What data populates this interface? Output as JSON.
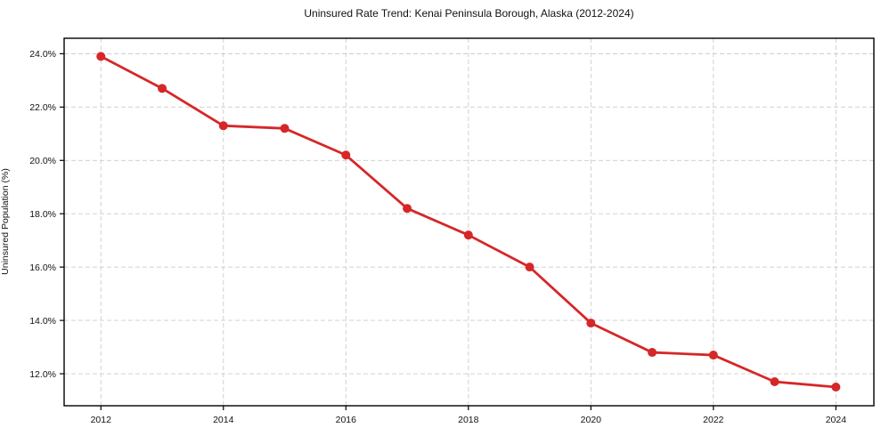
{
  "chart_data": {
    "type": "line",
    "title": "Uninsured Rate Trend: Kenai Peninsula Borough, Alaska (2012-2024)",
    "xlabel": "",
    "ylabel": "Uninsured Population (%)",
    "x": [
      2012,
      2013,
      2014,
      2015,
      2016,
      2017,
      2018,
      2019,
      2020,
      2021,
      2022,
      2023,
      2024
    ],
    "values": [
      23.9,
      22.7,
      21.3,
      21.2,
      20.2,
      18.2,
      17.2,
      16.0,
      13.9,
      12.8,
      12.7,
      11.7,
      11.5
    ],
    "x_ticks": [
      2012,
      2014,
      2016,
      2018,
      2020,
      2022,
      2024
    ],
    "x_tick_labels": [
      "2012",
      "2014",
      "2016",
      "2018",
      "2020",
      "2022",
      "2024"
    ],
    "y_ticks": [
      12,
      14,
      16,
      18,
      20,
      22,
      24
    ],
    "y_tick_labels": [
      "12.0%",
      "14.0%",
      "16.0%",
      "18.0%",
      "20.0%",
      "22.0%",
      "24.0%"
    ],
    "xlim": [
      2011.4,
      2024.62
    ],
    "ylim": [
      10.8,
      24.58
    ],
    "grid": true,
    "legend": "none",
    "colors": {
      "line": "#d62728",
      "marker": "#d62728",
      "grid": "#cccccc",
      "axis_border": "#000000",
      "tick_text": "#111111",
      "background": "#ffffff"
    }
  }
}
